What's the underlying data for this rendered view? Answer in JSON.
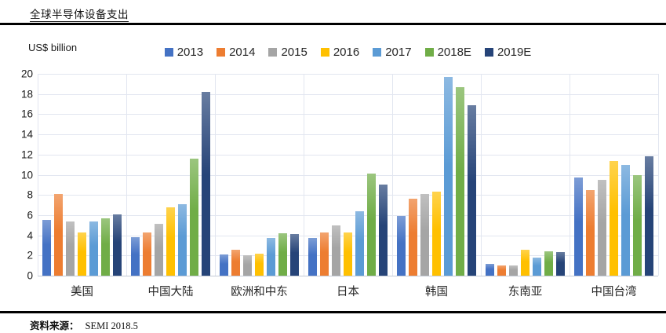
{
  "page": {
    "title": "全球半导体设备支出",
    "y_axis_title": "US$ billion",
    "source_label": "资料来源：",
    "source_value": "SEMI 2018.5"
  },
  "chart_data": {
    "type": "bar",
    "title": "全球半导体设备支出",
    "xlabel": "",
    "ylabel": "US$ billion",
    "ylim": [
      0,
      20
    ],
    "yticks": [
      0,
      2,
      4,
      6,
      8,
      10,
      12,
      14,
      16,
      18,
      20
    ],
    "grid": true,
    "legend_position": "top",
    "categories": [
      "美国",
      "中国大陆",
      "欧洲和中东",
      "日本",
      "韩国",
      "东南亚",
      "中国台湾"
    ],
    "series": [
      {
        "name": "2013",
        "color": "#4472C4",
        "values": [
          5.5,
          3.8,
          2.1,
          3.7,
          5.9,
          1.2,
          9.7
        ]
      },
      {
        "name": "2014",
        "color": "#ED7D31",
        "values": [
          8.1,
          4.3,
          2.6,
          4.3,
          7.6,
          1.0,
          8.5
        ]
      },
      {
        "name": "2015",
        "color": "#A5A5A5",
        "values": [
          5.4,
          5.1,
          2.0,
          5.0,
          8.1,
          1.0,
          9.5
        ]
      },
      {
        "name": "2016",
        "color": "#FFC000",
        "values": [
          4.3,
          6.8,
          2.2,
          4.3,
          8.3,
          2.6,
          11.4
        ]
      },
      {
        "name": "2017",
        "color": "#5B9BD5",
        "values": [
          5.4,
          7.1,
          3.7,
          6.4,
          19.7,
          1.8,
          11.0
        ]
      },
      {
        "name": "2018E",
        "color": "#70AD47",
        "values": [
          5.7,
          11.6,
          4.2,
          10.1,
          18.7,
          2.4,
          10.0
        ]
      },
      {
        "name": "2019E",
        "color": "#264478",
        "values": [
          6.1,
          18.2,
          4.1,
          9.0,
          16.9,
          2.3,
          11.8
        ]
      }
    ]
  }
}
